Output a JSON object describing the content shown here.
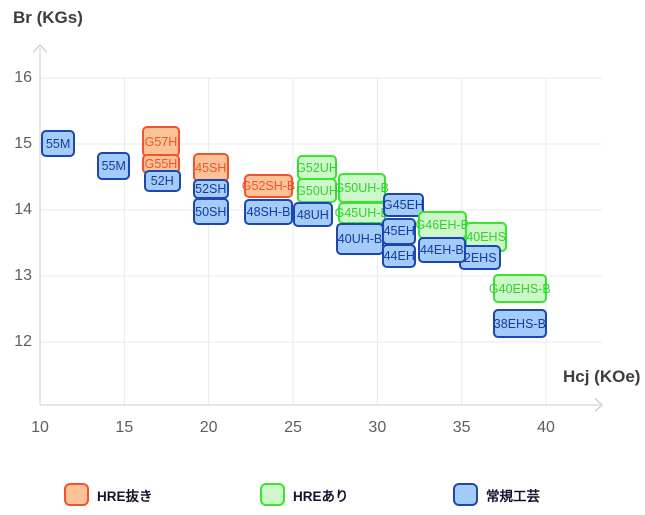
{
  "chart": {
    "y_axis_title": "Br (KGs)",
    "x_axis_title": "Hcj (KOe)"
  },
  "chart_data": {
    "type": "scatter",
    "subtype": "labeled-box grade map",
    "title": "",
    "xlabel": "Hcj (KOe)",
    "ylabel": "Br (KGs)",
    "x_ticks": [
      10,
      15,
      20,
      25,
      30,
      35,
      40
    ],
    "y_ticks": [
      12,
      13,
      14,
      15,
      16
    ],
    "xlim": [
      10,
      43.3
    ],
    "ylim": [
      11.05,
      16.5
    ],
    "grid": true,
    "legend_position": "bottom",
    "series_names": [
      "HRE抜き",
      "HREあり",
      "常規工芸"
    ],
    "points": [
      {
        "label": "55M",
        "series": "blue",
        "hcj": [
          10.05,
          12.1
        ],
        "br": [
          14.8,
          15.21
        ]
      },
      {
        "label": "55M",
        "series": "blue",
        "hcj": [
          13.4,
          15.35
        ],
        "br": [
          14.45,
          14.88
        ]
      },
      {
        "label": "G57H",
        "series": "orange",
        "hcj": [
          16.05,
          18.3
        ],
        "br": [
          14.8,
          15.27
        ]
      },
      {
        "label": "G55H",
        "series": "orange",
        "hcj": [
          16.05,
          18.3
        ],
        "br": [
          14.55,
          14.85
        ]
      },
      {
        "label": "52H",
        "series": "blue",
        "hcj": [
          16.15,
          18.35
        ],
        "br": [
          14.27,
          14.61
        ]
      },
      {
        "label": "45SH",
        "series": "orange",
        "hcj": [
          19.05,
          21.2
        ],
        "br": [
          14.42,
          14.86
        ]
      },
      {
        "label": "52SH",
        "series": "blue",
        "hcj": [
          19.05,
          21.2
        ],
        "br": [
          14.17,
          14.47
        ]
      },
      {
        "label": "50SH",
        "series": "blue",
        "hcj": [
          19.05,
          21.2
        ],
        "br": [
          13.77,
          14.18
        ]
      },
      {
        "label": "G52SH-B",
        "series": "orange",
        "hcj": [
          22.1,
          25.0
        ],
        "br": [
          14.18,
          14.55
        ]
      },
      {
        "label": "48SH-B",
        "series": "blue",
        "hcj": [
          22.1,
          25.0
        ],
        "br": [
          13.77,
          14.17
        ]
      },
      {
        "label": "G52UH",
        "series": "green",
        "hcj": [
          25.25,
          27.6
        ],
        "br": [
          14.45,
          14.83
        ]
      },
      {
        "label": "G50UH",
        "series": "green",
        "hcj": [
          25.25,
          27.6
        ],
        "br": [
          14.11,
          14.48
        ]
      },
      {
        "label": "48UH",
        "series": "blue",
        "hcj": [
          25.0,
          27.35
        ],
        "br": [
          13.74,
          14.12
        ]
      },
      {
        "label": "G50UH-B",
        "series": "green",
        "hcj": [
          27.65,
          30.5
        ],
        "br": [
          14.11,
          14.56
        ]
      },
      {
        "label": "G45UH-B",
        "series": "green",
        "hcj": [
          27.65,
          30.5
        ],
        "br": [
          13.79,
          14.12
        ]
      },
      {
        "label": "40UH-B",
        "series": "blue",
        "hcj": [
          27.55,
          30.4
        ],
        "br": [
          13.32,
          13.8
        ]
      },
      {
        "label": "G45EH",
        "series": "blue",
        "hcj": [
          30.35,
          32.75
        ],
        "br": [
          13.9,
          14.26
        ]
      },
      {
        "label": "45EH",
        "series": "blue",
        "hcj": [
          30.3,
          32.3
        ],
        "br": [
          13.47,
          13.88
        ]
      },
      {
        "label": "44EH",
        "series": "blue",
        "hcj": [
          30.3,
          32.3
        ],
        "br": [
          13.12,
          13.48
        ]
      },
      {
        "label": "G46EH-B",
        "series": "green",
        "hcj": [
          32.4,
          35.3
        ],
        "br": [
          13.56,
          13.98
        ]
      },
      {
        "label": "40EHS",
        "series": "green",
        "hcj": [
          35.2,
          37.7
        ],
        "br": [
          13.36,
          13.82
        ]
      },
      {
        "label": "2EHS",
        "series": "blue",
        "hcj": [
          34.85,
          37.35
        ],
        "br": [
          13.09,
          13.47
        ]
      },
      {
        "label": "44EH-B",
        "series": "blue",
        "hcj": [
          32.4,
          35.25
        ],
        "br": [
          13.2,
          13.59
        ]
      },
      {
        "label": "G40EHS-B",
        "series": "green",
        "hcj": [
          36.85,
          40.05
        ],
        "br": [
          12.59,
          13.03
        ]
      },
      {
        "label": "38EHS-B",
        "series": "blue",
        "hcj": [
          36.85,
          40.05
        ],
        "br": [
          12.06,
          12.5
        ]
      }
    ]
  },
  "legend": {
    "items": [
      {
        "label": "HRE抜き",
        "key": "orange"
      },
      {
        "label": "HREあり",
        "key": "green"
      },
      {
        "label": "常規工芸",
        "key": "blue"
      }
    ]
  },
  "colors": {
    "orange": {
      "fill": "#fac396",
      "border": "#f4512c",
      "text": "#f4512c"
    },
    "green": {
      "fill": "#cdf7c8",
      "border": "#36e52d",
      "text": "#2fd32f"
    },
    "blue": {
      "fill": "#a4ccf8",
      "border": "#1c46b4",
      "text": "#173a9e"
    },
    "gridline": "#e9e9e9",
    "axis": "#cccccc",
    "tick_text": "#5e5e5e"
  }
}
